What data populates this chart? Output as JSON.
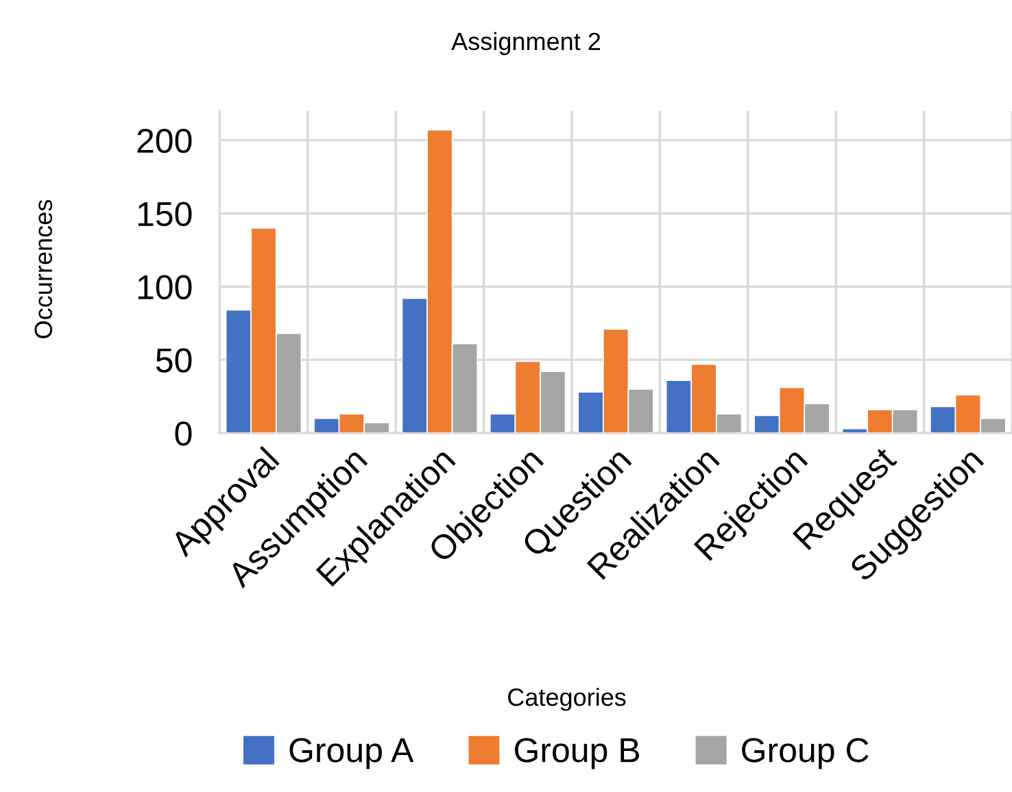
{
  "chart_data": {
    "type": "bar",
    "title": "Assignment 2",
    "xlabel": "Categories",
    "ylabel": "Occurrences",
    "categories": [
      "Approval",
      "Assumption",
      "Explanation",
      "Objection",
      "Question",
      "Realization",
      "Rejection",
      "Request",
      "Suggestion"
    ],
    "series": [
      {
        "name": "Group A",
        "color": "#4472c4",
        "values": [
          84,
          10,
          92,
          13,
          28,
          36,
          12,
          3,
          18
        ]
      },
      {
        "name": "Group B",
        "color": "#ed7d31",
        "values": [
          140,
          13,
          207,
          49,
          71,
          47,
          31,
          16,
          26
        ]
      },
      {
        "name": "Group C",
        "color": "#a5a5a5",
        "values": [
          68,
          7,
          61,
          42,
          30,
          13,
          20,
          16,
          10
        ]
      }
    ],
    "ylim": [
      0,
      220
    ],
    "yticks": [
      0,
      50,
      100,
      150,
      200
    ],
    "grid": true,
    "legend": "bottom"
  }
}
